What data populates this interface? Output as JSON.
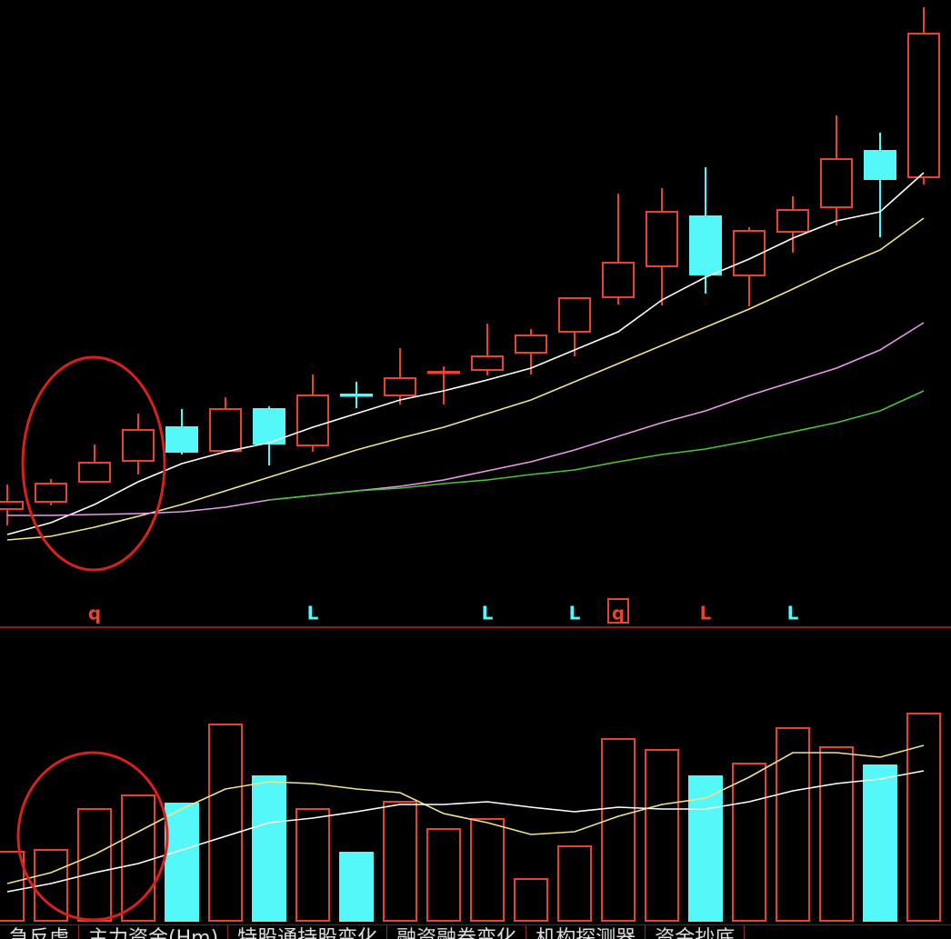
{
  "chart_data": [
    {
      "type": "candlestick",
      "categories": [
        null,
        null,
        null,
        null,
        null,
        null,
        null,
        null,
        null,
        null,
        null,
        null,
        null,
        null,
        null,
        null,
        null,
        null,
        null,
        null,
        null,
        null
      ],
      "open": [
        130,
        138,
        160,
        183,
        220,
        194,
        240,
        200,
        256,
        255,
        280,
        283,
        302,
        325,
        363,
        397,
        452,
        387,
        435,
        462,
        524,
        495
      ],
      "high": [
        157,
        163,
        201,
        235,
        240,
        253,
        243,
        278,
        270,
        307,
        287,
        334,
        328,
        362,
        477,
        483,
        506,
        440,
        474,
        563,
        544,
        682
      ],
      "low": [
        112,
        134,
        159,
        168,
        190,
        193,
        178,
        193,
        241,
        245,
        245,
        277,
        278,
        298,
        355,
        354,
        367,
        353,
        412,
        442,
        429,
        487
      ],
      "close": [
        138,
        158,
        181,
        217,
        193,
        240,
        202,
        255,
        255,
        274,
        281,
        298,
        321,
        362,
        401,
        457,
        388,
        436,
        459,
        515,
        493,
        653
      ],
      "up_color": "#e8432e",
      "down_color": "#54f8f8",
      "ylim": [
        0,
        690
      ],
      "series": [
        {
          "color": "#ffffff",
          "values": [
            102,
            115,
            135,
            160,
            180,
            193,
            203,
            220,
            235,
            250,
            260,
            272,
            285,
            305,
            325,
            360,
            385,
            405,
            428,
            447,
            457,
            500
          ]
        },
        {
          "color": "#f2e38a",
          "values": [
            96,
            100,
            110,
            122,
            135,
            150,
            165,
            180,
            195,
            208,
            220,
            235,
            250,
            270,
            290,
            310,
            330,
            350,
            372,
            395,
            415,
            450
          ]
        },
        {
          "color": "#e79be8",
          "values": [
            123,
            123,
            124,
            125,
            127,
            132,
            140,
            145,
            150,
            155,
            162,
            172,
            182,
            195,
            210,
            225,
            238,
            255,
            270,
            285,
            305,
            335
          ]
        },
        {
          "color": "#4fc23a",
          "values": [
            null,
            null,
            null,
            null,
            null,
            null,
            140,
            145,
            150,
            153,
            158,
            162,
            168,
            173,
            182,
            190,
            196,
            205,
            215,
            225,
            238,
            260
          ]
        }
      ],
      "signals": [
        null,
        null,
        "q",
        null,
        null,
        null,
        null,
        "L",
        null,
        null,
        null,
        "L",
        null,
        "L",
        "q",
        null,
        "L",
        null,
        "L",
        null,
        null,
        null
      ],
      "signal_colors": [
        null,
        null,
        "#e8432e",
        null,
        null,
        null,
        null,
        "#54f8f8",
        null,
        null,
        null,
        "#54f8f8",
        null,
        "#54f8f8",
        "#e8432e",
        null,
        "#e8432e",
        null,
        "#54f8f8",
        null,
        null,
        null
      ]
    },
    {
      "type": "volume",
      "values": [
        76,
        78,
        123,
        138,
        129,
        216,
        159,
        123,
        75,
        131,
        101,
        112,
        46,
        82,
        200,
        188,
        159,
        173,
        212,
        191,
        171,
        228
      ],
      "up_color": "#e8432e",
      "down_color": "#54f8f8",
      "ylim": [
        0,
        323
      ],
      "series": [
        {
          "color": "#f2e38a",
          "values": [
            41,
            53,
            73,
            98,
            123,
            145,
            153,
            151,
            145,
            141,
            118,
            108,
            95,
            98,
            115,
            128,
            135,
            158,
            185,
            185,
            180,
            193
          ]
        },
        {
          "color": "#ffffff",
          "values": [
            32,
            41,
            53,
            63,
            78,
            93,
            108,
            113,
            120,
            128,
            128,
            131,
            125,
            120,
            125,
            123,
            123,
            131,
            143,
            151,
            156,
            165
          ]
        }
      ]
    }
  ],
  "tabs": [
    "急反虎",
    "主力资金(Hm)",
    "特股通持股变化",
    "融资融券变化",
    "机构探测器",
    "资金抄底"
  ]
}
